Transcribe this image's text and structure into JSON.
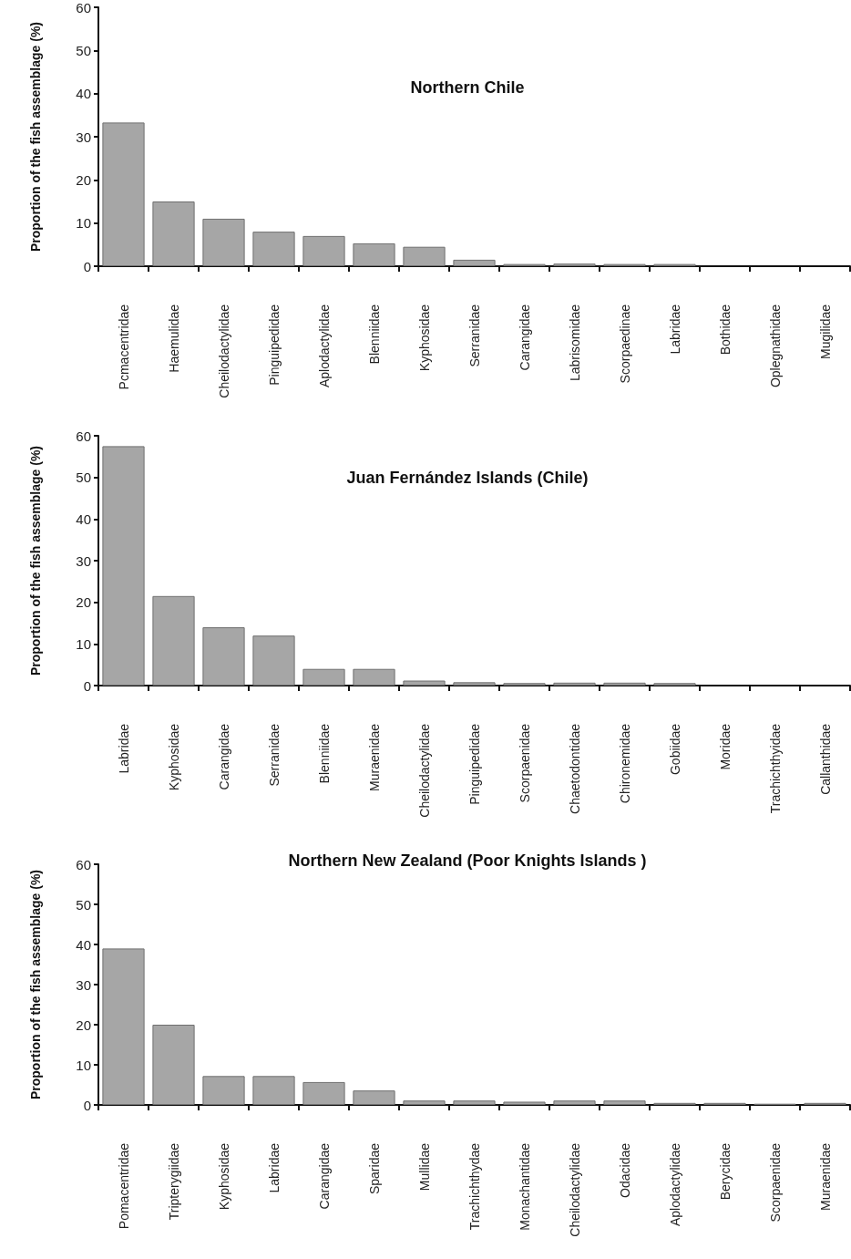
{
  "chart_data": [
    {
      "type": "bar",
      "title": "Northern Chile",
      "ylabel": "Proportion of the fish assemblage (%)",
      "categories": [
        "Pcmacentridae",
        "Haemulidae",
        "Cheilodactylidae",
        "Pinguipedidae",
        "Aplodactylidae",
        "Blenniidae",
        "Kyphosidae",
        "Serranidae",
        "Carangidae",
        "Labrisomidae",
        "Scorpaedinae",
        "Labridae",
        "Bothidae",
        "Oplegnathidae",
        "Mugilidae"
      ],
      "values": [
        33.3,
        15,
        11,
        8,
        7,
        5.3,
        4.5,
        1.5,
        0.5,
        0.6,
        0.5,
        0.5,
        0,
        0,
        0
      ],
      "color": "#a6a6a6",
      "ylim": [
        0,
        60
      ],
      "yticks": [
        0,
        10,
        20,
        30,
        40,
        50,
        60
      ],
      "grid": false
    },
    {
      "type": "bar",
      "title": "Juan Fernández Islands (Chile)",
      "ylabel": "Proportion of the fish assemblage (%)",
      "categories": [
        "Labridae",
        "Kyphosidae",
        "Carangidae",
        "Serranidae",
        "Blenniidae",
        "Muraenidae",
        "Cheilodactylidae",
        "Pinguipedidae",
        "Scorpaenidae",
        "Chaetodontidae",
        "Chironemidae",
        "Gobiidae",
        "Moridae",
        "Trachichthyidae",
        "Callanthidae"
      ],
      "values": [
        57.5,
        21.5,
        14,
        12,
        4,
        4,
        1.2,
        0.8,
        0.6,
        0.7,
        0.7,
        0.6,
        0,
        0,
        0
      ],
      "color": "#a6a6a6",
      "ylim": [
        0,
        60
      ],
      "yticks": [
        0,
        10,
        20,
        30,
        40,
        50,
        60
      ],
      "grid": false
    },
    {
      "type": "bar",
      "title": "Northern New Zealand (Poor Knights Islands )",
      "ylabel": "Proportion of the fish assemblage (%)",
      "categories": [
        "Pomacentridae",
        "Tripterygiidae",
        "Kyphosidae",
        "Labridae",
        "Carangidae",
        "Sparidae",
        "Mullidae",
        "Trachichthydae",
        "Monachantidae",
        "Cheilodactylidae",
        "Odacidae",
        "Aplodactylidae",
        "Berycidae",
        "Scorpaenidae",
        "Muraenidae"
      ],
      "values": [
        39,
        20,
        7.2,
        7.2,
        5.7,
        3.6,
        1.1,
        1.1,
        0.8,
        1.1,
        1.1,
        0.5,
        0.5,
        0.3,
        0.5
      ],
      "color": "#a6a6a6",
      "ylim": [
        0,
        60
      ],
      "yticks": [
        0,
        10,
        20,
        30,
        40,
        50,
        60
      ],
      "grid": false
    }
  ]
}
